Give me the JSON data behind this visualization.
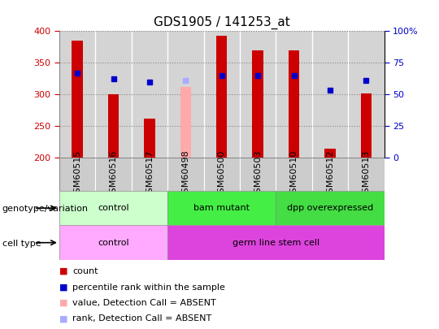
{
  "title": "GDS1905 / 141253_at",
  "samples": [
    "GSM60515",
    "GSM60516",
    "GSM60517",
    "GSM60498",
    "GSM60500",
    "GSM60503",
    "GSM60510",
    "GSM60512",
    "GSM60513"
  ],
  "count_values": [
    385,
    300,
    262,
    null,
    393,
    370,
    370,
    215,
    302
  ],
  "count_absent": [
    null,
    null,
    null,
    312,
    null,
    null,
    null,
    null,
    null
  ],
  "percentile_values": [
    334,
    325,
    320,
    null,
    330,
    330,
    330,
    307,
    322
  ],
  "percentile_absent": [
    null,
    null,
    null,
    322,
    null,
    null,
    null,
    null,
    null
  ],
  "ylim": [
    200,
    400
  ],
  "yticks": [
    200,
    250,
    300,
    350,
    400
  ],
  "bar_color": "#cc0000",
  "absent_bar_color": "#ffaaaa",
  "dot_color": "#0000cc",
  "absent_dot_color": "#aaaaff",
  "grid_color": "#888888",
  "col_bg_color": "#cccccc",
  "genotype_groups": [
    {
      "label": "control",
      "start": 0,
      "end": 3,
      "color": "#ccffcc"
    },
    {
      "label": "bam mutant",
      "start": 3,
      "end": 6,
      "color": "#44dd44"
    },
    {
      "label": "dpp overexpressed",
      "start": 6,
      "end": 9,
      "color": "#44dd44"
    }
  ],
  "celltype_groups": [
    {
      "label": "control",
      "start": 0,
      "end": 3,
      "color": "#ffaaff"
    },
    {
      "label": "germ line stem cell",
      "start": 3,
      "end": 9,
      "color": "#dd44dd"
    }
  ],
  "legend_items": [
    {
      "label": "count",
      "color": "#cc0000"
    },
    {
      "label": "percentile rank within the sample",
      "color": "#0000cc"
    },
    {
      "label": "value, Detection Call = ABSENT",
      "color": "#ffaaaa"
    },
    {
      "label": "rank, Detection Call = ABSENT",
      "color": "#aaaaff"
    }
  ],
  "left_ytick_color": "#cc0000",
  "right_ytick_color": "#0000cc",
  "right_tick_labels": [
    "0",
    "25",
    "50",
    "75",
    "100%"
  ],
  "right_tick_positions": [
    200,
    250,
    300,
    350,
    400
  ],
  "tick_label_fontsize": 8,
  "title_fontsize": 11,
  "annot_fontsize": 8,
  "legend_fontsize": 8
}
